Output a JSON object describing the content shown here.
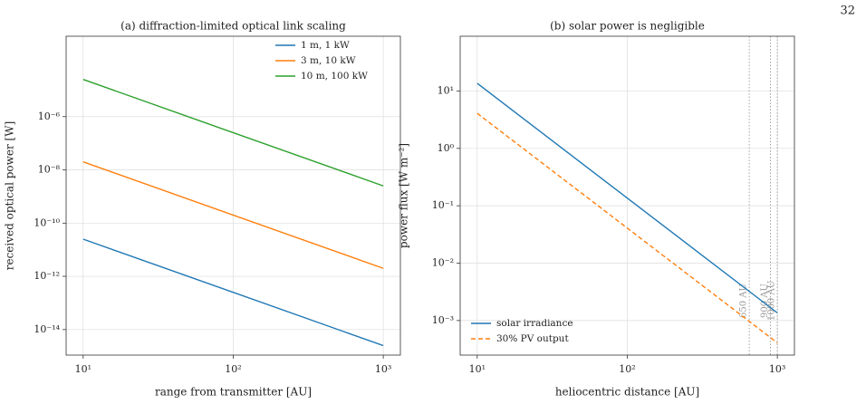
{
  "page_number": "32",
  "chart_data": [
    {
      "type": "line",
      "title": "(a) diffraction-limited optical link scaling",
      "x_label": "range from transmitter [AU]",
      "y_label": "received optical power [W]",
      "log_x": true,
      "log_y": true,
      "grid": true,
      "legend": "upper right",
      "xlim": [
        7.7,
        1300
      ],
      "ylim": [
        1.1e-15,
        0.00105
      ],
      "xticks": [
        {
          "value": 10,
          "label": "10¹"
        },
        {
          "value": 100,
          "label": "10²"
        },
        {
          "value": 1000,
          "label": "10³"
        }
      ],
      "yticks": [
        {
          "value": 1e-14,
          "label": "10⁻¹⁴"
        },
        {
          "value": 1e-12,
          "label": "10⁻¹²"
        },
        {
          "value": 1e-10,
          "label": "10⁻¹⁰"
        },
        {
          "value": 1e-08,
          "label": "10⁻⁸"
        },
        {
          "value": 1e-06,
          "label": "10⁻⁶"
        }
      ],
      "x": [
        10,
        1000
      ],
      "series": [
        {
          "name": "1 m, 1 kW",
          "color": "#1f77b4",
          "linestyle": "solid",
          "values": [
            2.5e-11,
            2.5e-15
          ]
        },
        {
          "name": "3 m, 10 kW",
          "color": "#ff7f0e",
          "linestyle": "solid",
          "values": [
            2e-08,
            2e-12
          ]
        },
        {
          "name": "10 m, 100 kW",
          "color": "#2ca02c",
          "linestyle": "solid",
          "values": [
            2.5e-05,
            2.5e-09
          ]
        }
      ]
    },
    {
      "type": "line",
      "title": "(b) solar power is negligible",
      "x_label": "heliocentric distance [AU]",
      "y_label": "power flux [W m⁻²]",
      "log_x": true,
      "log_y": true,
      "grid": true,
      "legend": "lower left",
      "xlim": [
        7.7,
        1300
      ],
      "ylim": [
        0.00025,
        90
      ],
      "xticks": [
        {
          "value": 10,
          "label": "10¹"
        },
        {
          "value": 100,
          "label": "10²"
        },
        {
          "value": 1000,
          "label": "10³"
        }
      ],
      "yticks": [
        {
          "value": 0.001,
          "label": "10⁻³"
        },
        {
          "value": 0.01,
          "label": "10⁻²"
        },
        {
          "value": 0.1,
          "label": "10⁻¹"
        },
        {
          "value": 1,
          "label": "10⁰"
        },
        {
          "value": 10,
          "label": "10¹"
        }
      ],
      "x": [
        10,
        1000
      ],
      "series": [
        {
          "name": "solar irradiance",
          "color": "#1f77b4",
          "linestyle": "solid",
          "values": [
            13.61,
            0.001361
          ]
        },
        {
          "name": "30% PV output",
          "color": "#ff7f0e",
          "linestyle": "dashed",
          "values": [
            4.083,
            0.0004083
          ]
        }
      ],
      "vlines": [
        {
          "x": 650,
          "label": "650 AU"
        },
        {
          "x": 900,
          "label": "900 AU"
        },
        {
          "x": 1000,
          "label": "1000 AU"
        }
      ],
      "vline_color": "#999999"
    }
  ]
}
